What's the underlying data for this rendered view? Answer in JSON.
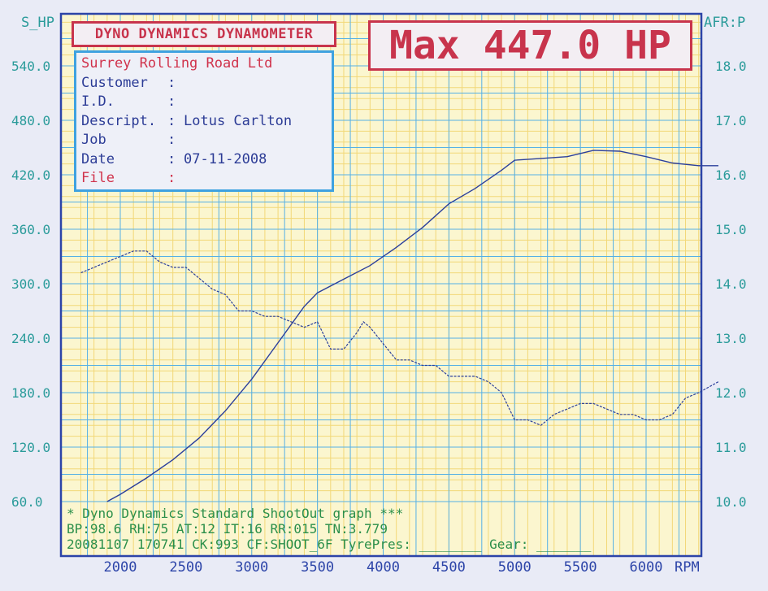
{
  "labels": {
    "left_axis": "S_HP",
    "right_axis": "AFR:P",
    "x_unit": "RPM"
  },
  "header": {
    "title": "DYNO DYNAMICS DYNAMOMETER",
    "max_label": "Max 447.0 HP"
  },
  "info": {
    "company": "Surrey Rolling Road Ltd",
    "rows": [
      {
        "key": "Customer",
        "value": ""
      },
      {
        "key": "I.D.",
        "value": ""
      },
      {
        "key": "Descript.",
        "value": "Lotus Carlton"
      },
      {
        "key": "Job",
        "value": ""
      },
      {
        "key": "Date",
        "value": "07-11-2008"
      }
    ],
    "file_key": "File",
    "colon": ":"
  },
  "footer": {
    "line1": "* Dyno Dynamics Standard ShootOut graph ***",
    "line2": "BP:98.6  RH:75 AT:12 IT:16  RR:015 TN:3.779",
    "line3": "20081107 170741 CK:993 CF:SHOOT_6F TyrePres: ________ Gear: _______"
  },
  "colors": {
    "frame": "#2c44a8",
    "grid_major": "#55b0e6",
    "grid_minor": "#f2d878",
    "hp_line": "#2b3f9c",
    "afr_line": "#2b3f9c",
    "plot_bg": "#fbf6cf"
  },
  "chart_data": {
    "type": "line",
    "x_range": [
      1700,
      6550
    ],
    "x_ticks": [
      2000,
      2500,
      3000,
      3500,
      4000,
      4500,
      5000,
      5500,
      6000
    ],
    "y_left": {
      "range": [
        60,
        600
      ],
      "ticks": [
        60,
        120,
        180,
        240,
        300,
        360,
        420,
        480,
        540
      ],
      "tick_labels": [
        "60.0",
        "120.0",
        "180.0",
        "240.0",
        "300.0",
        "360.0",
        "420.0",
        "480.0",
        "540.0"
      ]
    },
    "y_right": {
      "range": [
        10,
        18
      ],
      "ticks": [
        10,
        11,
        12,
        13,
        14,
        15,
        16,
        17,
        18
      ],
      "tick_labels": [
        "10.0",
        "11.0",
        "12.0",
        "13.0",
        "14.0",
        "15.0",
        "16.0",
        "17.0",
        "18.0"
      ]
    },
    "grid": true,
    "series": [
      {
        "axis": "left",
        "x": [
          1900,
          2000,
          2200,
          2400,
          2600,
          2800,
          3000,
          3200,
          3400,
          3500,
          3700,
          3900,
          4100,
          4300,
          4500,
          4700,
          4900,
          5000,
          5200,
          5400,
          5600,
          5800,
          6000,
          6200,
          6400,
          6550
        ],
        "values": [
          60,
          68,
          86,
          106,
          130,
          160,
          195,
          235,
          275,
          290,
          305,
          320,
          340,
          362,
          388,
          405,
          425,
          436,
          438,
          440,
          447,
          446,
          440,
          433,
          430,
          430
        ]
      },
      {
        "axis": "right",
        "x": [
          1700,
          1800,
          1900,
          2000,
          2100,
          2200,
          2300,
          2400,
          2500,
          2600,
          2700,
          2800,
          2900,
          3000,
          3100,
          3200,
          3300,
          3400,
          3500,
          3600,
          3700,
          3800,
          3850,
          3900,
          4000,
          4100,
          4200,
          4300,
          4400,
          4500,
          4600,
          4700,
          4800,
          4900,
          5000,
          5100,
          5200,
          5300,
          5400,
          5500,
          5600,
          5700,
          5800,
          5900,
          6000,
          6100,
          6200,
          6300,
          6400,
          6550
        ],
        "values": [
          14.2,
          14.3,
          14.4,
          14.5,
          14.6,
          14.6,
          14.4,
          14.3,
          14.3,
          14.1,
          13.9,
          13.8,
          13.5,
          13.5,
          13.4,
          13.4,
          13.3,
          13.2,
          13.3,
          12.8,
          12.8,
          13.1,
          13.3,
          13.2,
          12.9,
          12.6,
          12.6,
          12.5,
          12.5,
          12.3,
          12.3,
          12.3,
          12.2,
          12.0,
          11.5,
          11.5,
          11.4,
          11.6,
          11.7,
          11.8,
          11.8,
          11.7,
          11.6,
          11.6,
          11.5,
          11.5,
          11.6,
          11.9,
          12.0,
          12.2
        ]
      }
    ]
  }
}
